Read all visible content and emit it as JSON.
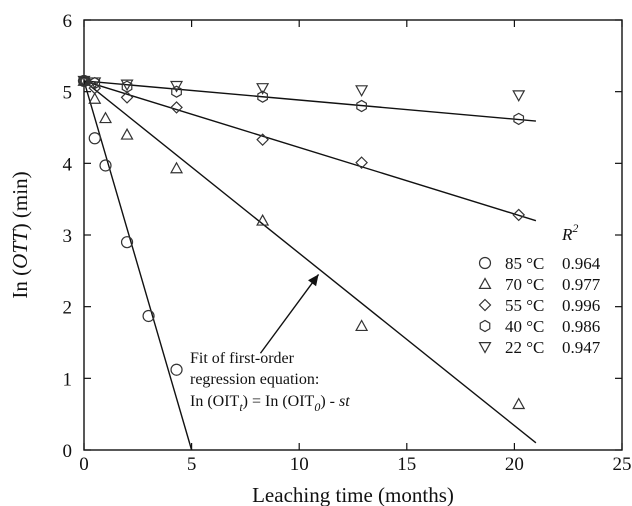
{
  "chart_data": {
    "type": "scatter",
    "xlabel": "Leaching time (months)",
    "ylabel_parts": [
      "In (",
      "OTT",
      ") (min)"
    ],
    "xlim": [
      0,
      25
    ],
    "ylim": [
      0,
      6
    ],
    "x_ticks": [
      "0",
      "5",
      "10",
      "15",
      "20",
      "25"
    ],
    "y_ticks": [
      "0",
      "1",
      "2",
      "3",
      "4",
      "5",
      "6"
    ],
    "grid": false,
    "legend": {
      "position": "right",
      "header": "R",
      "header_sup": "2",
      "entries": [
        {
          "marker": "circle",
          "label": "85 °C",
          "r2": "0.964"
        },
        {
          "marker": "triangle-up",
          "label": "70 °C",
          "r2": "0.977"
        },
        {
          "marker": "diamond",
          "label": "55 °C",
          "r2": "0.996"
        },
        {
          "marker": "hexagon",
          "label": "40 °C",
          "r2": "0.986"
        },
        {
          "marker": "triangle-down",
          "label": "22 °C",
          "r2": "0.947"
        }
      ]
    },
    "series": [
      {
        "name": "85 °C",
        "marker": "circle",
        "x": [
          0,
          0.5,
          1,
          2,
          3,
          4.3
        ],
        "y": [
          5.15,
          4.35,
          3.97,
          2.9,
          1.87,
          1.12
        ],
        "fit": {
          "x": [
            0,
            5.0
          ],
          "y": [
            5.15,
            0.0
          ]
        }
      },
      {
        "name": "70 °C",
        "marker": "triangle-up",
        "x": [
          0,
          0.5,
          1,
          2,
          4.3,
          8.3,
          12.9,
          20.2
        ],
        "y": [
          5.15,
          4.9,
          4.63,
          4.4,
          3.93,
          3.2,
          1.73,
          0.64
        ],
        "fit": {
          "x": [
            0,
            21.0
          ],
          "y": [
            5.15,
            0.1
          ]
        }
      },
      {
        "name": "55 °C",
        "marker": "diamond",
        "x": [
          0,
          0.5,
          2,
          4.3,
          8.3,
          12.9,
          20.2
        ],
        "y": [
          5.15,
          5.05,
          4.92,
          4.78,
          4.33,
          4.01,
          3.28
        ],
        "fit": {
          "x": [
            0,
            21.0
          ],
          "y": [
            5.15,
            3.2
          ]
        }
      },
      {
        "name": "40 °C",
        "marker": "hexagon",
        "x": [
          0,
          0.5,
          2,
          4.3,
          8.3,
          12.9,
          20.2
        ],
        "y": [
          5.15,
          5.12,
          5.07,
          5.0,
          4.93,
          4.8,
          4.62
        ],
        "fit": {
          "x": [
            0,
            21.0
          ],
          "y": [
            5.15,
            4.59
          ]
        }
      },
      {
        "name": "22 °C",
        "marker": "triangle-down",
        "x": [
          0,
          0.5,
          2,
          4.3,
          8.3,
          12.9,
          20.2
        ],
        "y": [
          5.15,
          5.13,
          5.1,
          5.08,
          5.05,
          5.02,
          4.95
        ],
        "fit": null
      }
    ],
    "annotation": {
      "lines": [
        "Fit of first-order",
        "regression equation:",
        "In (OIT",
        "t",
        ") = In (OIT",
        "0",
        ") - ",
        "st"
      ],
      "arrow_tip": [
        10.9,
        2.45
      ],
      "arrow_tail": [
        8.2,
        1.35
      ]
    }
  }
}
